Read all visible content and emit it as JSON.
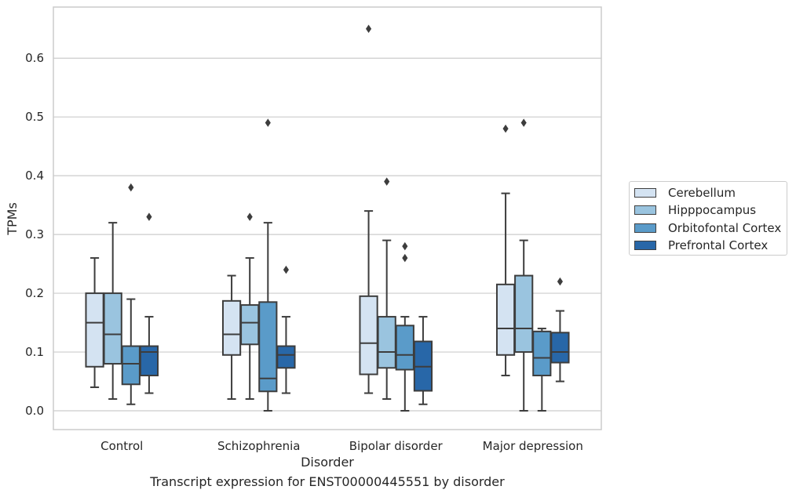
{
  "caption": "Transcript expression for ENST00000445551 by disorder",
  "chart_data": {
    "type": "box",
    "xlabel": "Disorder",
    "ylabel": "TPMs",
    "ylim": [
      -0.032,
      0.687
    ],
    "yticks": [
      "0.0",
      "0.1",
      "0.2",
      "0.3",
      "0.4",
      "0.5",
      "0.6"
    ],
    "categories": [
      "Control",
      "Schizophrenia",
      "Bipolar disorder",
      "Major depression"
    ],
    "grid": "horizontal",
    "legend_position": "right",
    "series": [
      {
        "name": "Cerebellum",
        "color": "#d4e3f2",
        "boxes": [
          {
            "whislo": 0.04,
            "q1": 0.075,
            "med": 0.15,
            "q3": 0.2,
            "whishi": 0.26,
            "fliers": []
          },
          {
            "whislo": 0.02,
            "q1": 0.095,
            "med": 0.13,
            "q3": 0.187,
            "whishi": 0.23,
            "fliers": []
          },
          {
            "whislo": 0.03,
            "q1": 0.062,
            "med": 0.115,
            "q3": 0.195,
            "whishi": 0.34,
            "fliers": [
              0.65
            ]
          },
          {
            "whislo": 0.06,
            "q1": 0.095,
            "med": 0.14,
            "q3": 0.215,
            "whishi": 0.37,
            "fliers": [
              0.48
            ]
          }
        ]
      },
      {
        "name": "Hipppocampus",
        "color": "#9ac4df",
        "boxes": [
          {
            "whislo": 0.02,
            "q1": 0.08,
            "med": 0.13,
            "q3": 0.2,
            "whishi": 0.32,
            "fliers": []
          },
          {
            "whislo": 0.02,
            "q1": 0.113,
            "med": 0.15,
            "q3": 0.18,
            "whishi": 0.26,
            "fliers": [
              0.33
            ]
          },
          {
            "whislo": 0.02,
            "q1": 0.073,
            "med": 0.1,
            "q3": 0.16,
            "whishi": 0.29,
            "fliers": [
              0.39
            ]
          },
          {
            "whislo": 0.0,
            "q1": 0.1,
            "med": 0.14,
            "q3": 0.23,
            "whishi": 0.29,
            "fliers": [
              0.49
            ]
          }
        ]
      },
      {
        "name": "Orbitofontal Cortex",
        "color": "#5a9bc9",
        "boxes": [
          {
            "whislo": 0.011,
            "q1": 0.045,
            "med": 0.08,
            "q3": 0.11,
            "whishi": 0.19,
            "fliers": [
              0.38
            ]
          },
          {
            "whislo": 0.0,
            "q1": 0.033,
            "med": 0.055,
            "q3": 0.185,
            "whishi": 0.32,
            "fliers": [
              0.49
            ]
          },
          {
            "whislo": 0.0,
            "q1": 0.07,
            "med": 0.095,
            "q3": 0.145,
            "whishi": 0.16,
            "fliers": [
              0.26,
              0.28
            ]
          },
          {
            "whislo": 0.0,
            "q1": 0.06,
            "med": 0.09,
            "q3": 0.135,
            "whishi": 0.14,
            "fliers": []
          }
        ]
      },
      {
        "name": "Prefrontal Cortex",
        "color": "#2867a8",
        "boxes": [
          {
            "whislo": 0.03,
            "q1": 0.06,
            "med": 0.1,
            "q3": 0.11,
            "whishi": 0.16,
            "fliers": [
              0.33
            ]
          },
          {
            "whislo": 0.03,
            "q1": 0.073,
            "med": 0.095,
            "q3": 0.11,
            "whishi": 0.16,
            "fliers": [
              0.24
            ]
          },
          {
            "whislo": 0.011,
            "q1": 0.034,
            "med": 0.075,
            "q3": 0.118,
            "whishi": 0.16,
            "fliers": []
          },
          {
            "whislo": 0.05,
            "q1": 0.082,
            "med": 0.1,
            "q3": 0.133,
            "whishi": 0.17,
            "fliers": [
              0.22
            ]
          }
        ]
      }
    ]
  }
}
